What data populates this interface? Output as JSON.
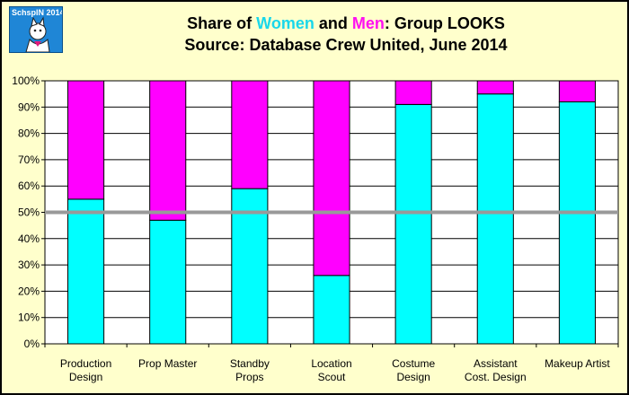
{
  "title": {
    "prefix": "Share of ",
    "women": "Women",
    "and": " and ",
    "men": "Men",
    "suffix": ": Group LOOKS",
    "line2": "Source: Database Crew United, June 2014"
  },
  "logo": {
    "text": "SchspIN 2014",
    "icon": "cat-illustration-icon"
  },
  "colors": {
    "women": "#00ffff",
    "men": "#ff00ff",
    "background": "#ffffcc",
    "plot": "#ffffff",
    "reference_line": "#999999"
  },
  "chart_data": {
    "type": "bar",
    "stacked": true,
    "categories": [
      [
        "Production",
        "Design"
      ],
      [
        "Prop Master"
      ],
      [
        "Standby",
        "Props"
      ],
      [
        "Location",
        "Scout"
      ],
      [
        "Costume",
        "Design"
      ],
      [
        "Assistant",
        "Cost. Design"
      ],
      [
        "Makeup Artist"
      ]
    ],
    "series": [
      {
        "name": "Women",
        "color": "#00ffff",
        "values": [
          55,
          47,
          59,
          26,
          91,
          95,
          92
        ]
      },
      {
        "name": "Men",
        "color": "#ff00ff",
        "values": [
          45,
          53,
          41,
          74,
          9,
          5,
          8
        ]
      }
    ],
    "ylim": [
      0,
      100
    ],
    "yticks": [
      "0%",
      "10%",
      "20%",
      "30%",
      "40%",
      "50%",
      "60%",
      "70%",
      "80%",
      "90%",
      "100%"
    ],
    "reference_line": 50,
    "grid": true
  }
}
